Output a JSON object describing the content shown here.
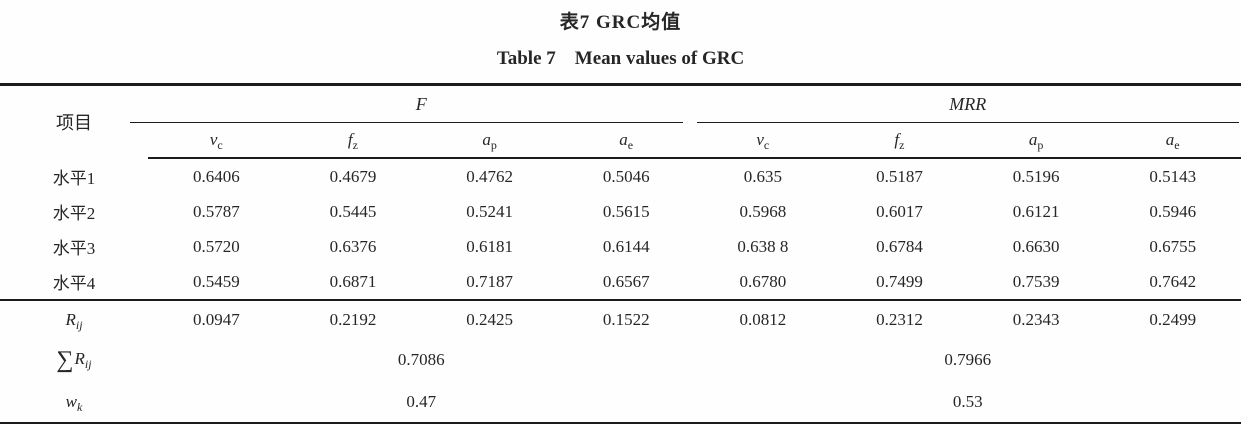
{
  "titles": {
    "zh": "表7 GRC均值",
    "en": "Table 7　Mean values of GRC"
  },
  "table": {
    "item_header": "项目",
    "groups": [
      "F",
      "MRR"
    ],
    "sub_headers": [
      {
        "base": "v",
        "sub": "c"
      },
      {
        "base": "f",
        "sub": "z"
      },
      {
        "base": "a",
        "sub": "p"
      },
      {
        "base": "a",
        "sub": "e"
      }
    ],
    "rows": [
      {
        "label": "水平1",
        "values": [
          "0.6406",
          "0.4679",
          "0.4762",
          "0.5046",
          "0.635",
          "0.5187",
          "0.5196",
          "0.5143"
        ]
      },
      {
        "label": "水平2",
        "values": [
          "0.5787",
          "0.5445",
          "0.5241",
          "0.5615",
          "0.5968",
          "0.6017",
          "0.6121",
          "0.5946"
        ]
      },
      {
        "label": "水平3",
        "values": [
          "0.5720",
          "0.6376",
          "0.6181",
          "0.6144",
          "0.638 8",
          "0.6784",
          "0.6630",
          "0.6755"
        ]
      },
      {
        "label": "水平4",
        "values": [
          "0.5459",
          "0.6871",
          "0.7187",
          "0.6567",
          "0.6780",
          "0.7499",
          "0.7539",
          "0.7642"
        ]
      }
    ],
    "rij_row": {
      "label_base": "R",
      "label_sub": "ij",
      "values": [
        "0.0947",
        "0.2192",
        "0.2425",
        "0.1522",
        "0.0812",
        "0.2312",
        "0.2343",
        "0.2499"
      ]
    },
    "sum_row": {
      "sigma": "∑",
      "label_base": "R",
      "label_sub": "ij",
      "values": [
        "0.7086",
        "0.7966"
      ]
    },
    "wk_row": {
      "label_base": "w",
      "label_sub": "k",
      "values": [
        "0.47",
        "0.53"
      ]
    }
  }
}
